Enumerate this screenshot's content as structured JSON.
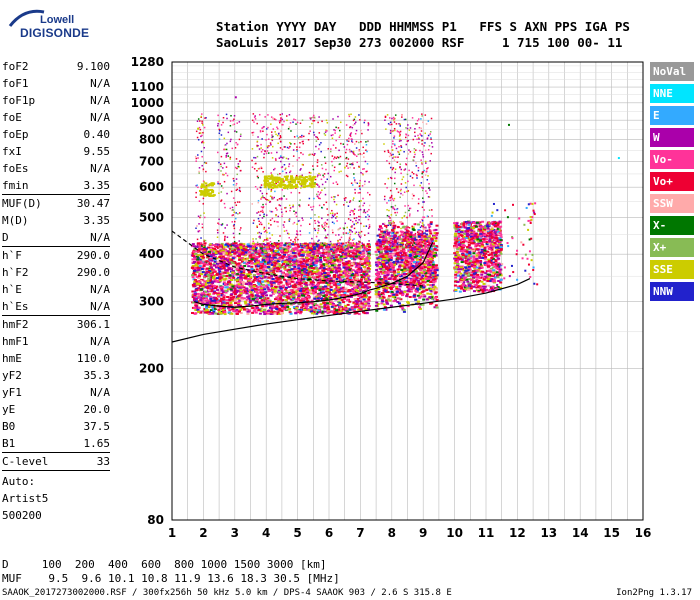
{
  "logo": {
    "line1": "Lowell",
    "line2": "DIGISONDE"
  },
  "header": {
    "line1": "Station YYYY DAY   DDD HHMMSS P1   FFS S AXN PPS IGA PS",
    "line2": "SaoLuis 2017 Sep30 273 002000 RSF     1 715 100 00- 11"
  },
  "scaled": [
    {
      "name": "foF2",
      "value": "9.100"
    },
    {
      "name": "foF1",
      "value": "N/A"
    },
    {
      "name": "foF1p",
      "value": "N/A"
    },
    {
      "name": "foE",
      "value": "N/A"
    },
    {
      "name": "foEp",
      "value": "0.40"
    },
    {
      "name": "fxI",
      "value": "9.55"
    },
    {
      "name": "foEs",
      "value": "N/A"
    },
    {
      "name": "fmin",
      "value": "3.35"
    },
    {
      "sep": true
    },
    {
      "name": "MUF(D)",
      "value": "30.47"
    },
    {
      "name": "M(D)",
      "value": "3.35"
    },
    {
      "name": "D",
      "value": "N/A"
    },
    {
      "sep": true
    },
    {
      "name": "h`F",
      "value": "290.0"
    },
    {
      "name": "h`F2",
      "value": "290.0"
    },
    {
      "name": "h`E",
      "value": "N/A"
    },
    {
      "name": "h`Es",
      "value": "N/A"
    },
    {
      "sep": true
    },
    {
      "name": "hmF2",
      "value": "306.1"
    },
    {
      "name": "hmF1",
      "value": "N/A"
    },
    {
      "name": "hmE",
      "value": "110.0"
    },
    {
      "name": "yF2",
      "value": "35.3"
    },
    {
      "name": "yF1",
      "value": "N/A"
    },
    {
      "name": "yE",
      "value": "20.0"
    },
    {
      "name": "B0",
      "value": "37.5"
    },
    {
      "name": "B1",
      "value": "1.65"
    },
    {
      "sep": true
    },
    {
      "name": "C-level",
      "value": "33"
    },
    {
      "sep": true
    }
  ],
  "auto": {
    "line1": "Auto:",
    "line2": "Artist5",
    "line3": "500200"
  },
  "legend": [
    {
      "label": "NoVal",
      "color": "#999999"
    },
    {
      "label": "NNE",
      "color": "#00e5ff"
    },
    {
      "label": "E",
      "color": "#33aaff"
    },
    {
      "label": "W",
      "color": "#aa00aa"
    },
    {
      "label": "Vo-",
      "color": "#ff3399"
    },
    {
      "label": "Vo+",
      "color": "#ee0033"
    },
    {
      "label": "SSW",
      "color": "#ffaaaa"
    },
    {
      "label": "X-",
      "color": "#007700"
    },
    {
      "label": "X+",
      "color": "#88bb55"
    },
    {
      "label": "SSE",
      "color": "#cccc00"
    },
    {
      "label": "NNW",
      "color": "#2222cc"
    }
  ],
  "bottom": {
    "d_line": "D     100  200  400  600  800 1000 1500 3000 [km]",
    "muf_line": "MUF    9.5  9.6 10.1 10.8 11.9 13.6 18.3 30.5 [MHz]"
  },
  "footer": {
    "left": "SAAOK_2017273002000.RSF / 300fx256h 50 kHz 5.0 km / DPS-4 SAAOK 903 / 2.6 S 315.8 E",
    "right": "Ion2Png 1.3.17"
  },
  "chart_data": {
    "type": "scatter",
    "x_label": "",
    "y_label": "",
    "xlim": [
      1,
      16
    ],
    "ylim": [
      80,
      1280
    ],
    "y_scale": "log",
    "x_ticks": [
      1,
      2,
      3,
      4,
      5,
      6,
      7,
      8,
      9,
      10,
      11,
      12,
      13,
      14,
      15,
      16
    ],
    "y_ticks": [
      80,
      200,
      300,
      400,
      500,
      600,
      700,
      800,
      900,
      1000,
      1100,
      1280
    ],
    "grid": true,
    "series": [
      {
        "name": "O-trace",
        "x": [
          1.7,
          2.0,
          2.5,
          3.0,
          3.5,
          4.0,
          4.5,
          5.0,
          5.5,
          6.0,
          6.5,
          7.0,
          7.3,
          7.5,
          8.0,
          8.5,
          9.0,
          9.3
        ],
        "y": [
          300,
          295,
          292,
          290,
          292,
          295,
          297,
          298,
          300,
          303,
          308,
          315,
          322,
          325,
          335,
          350,
          380,
          430
        ]
      },
      {
        "name": "profile",
        "x": [
          1.0,
          2.0,
          3.0,
          4.0,
          5.0,
          6.0,
          7.0,
          8.0,
          9.0,
          10.0,
          11.0,
          12.0,
          12.4
        ],
        "y": [
          235,
          246,
          254,
          262,
          269,
          276,
          283,
          290,
          297,
          305,
          316,
          333,
          345
        ]
      },
      {
        "name": "x-trace-dashed",
        "x": [
          1.0,
          2.0,
          3.0,
          4.0,
          5.0,
          6.0,
          7.0,
          8.0,
          9.0
        ],
        "y": [
          460,
          400,
          370,
          355,
          345,
          340,
          338,
          335,
          330
        ]
      }
    ],
    "isolated_points": [
      {
        "x": 11.7,
        "y": 880,
        "color": "#007700"
      },
      {
        "x": 15.2,
        "y": 720,
        "color": "#00e5ff"
      },
      {
        "x": 1.8,
        "y": 860,
        "color": "#cccc00"
      },
      {
        "x": 3.0,
        "y": 1040,
        "color": "#aa00aa"
      }
    ]
  }
}
